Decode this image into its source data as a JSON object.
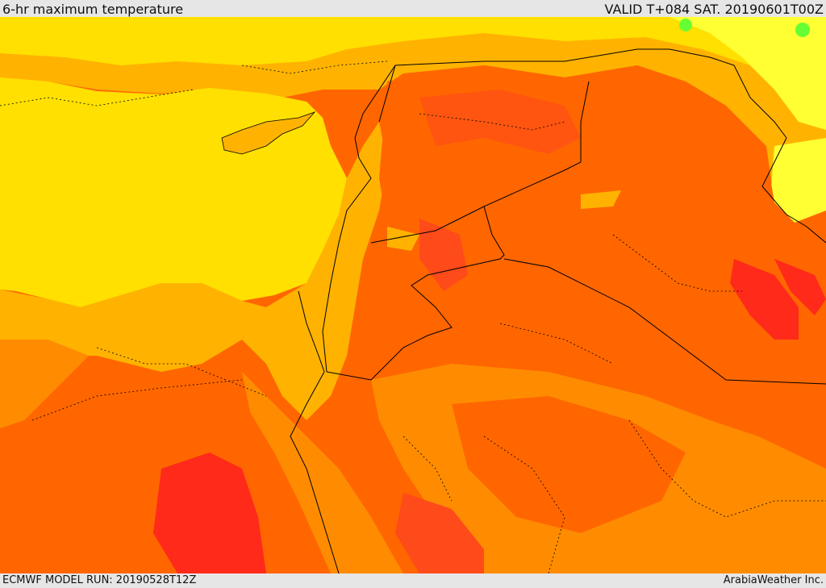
{
  "header": {
    "title": "6-hr maximum temperature",
    "valid": "VALID T+084 SAT. 20190601T00Z"
  },
  "footer": {
    "model_run": "ECMWF MODEL RUN: 20190528T12Z",
    "credit": "ArabiaWeather Inc."
  },
  "colors": {
    "sea_yellow": "#ffe000",
    "light_yellow": "#ffff33",
    "pale_orange": "#ffb300",
    "orange": "#ff8c00",
    "deep_orange": "#ff6600",
    "red_orange": "#ff4a1a",
    "red": "#ff2a1a",
    "green": "#66ff33",
    "border": "#000000"
  }
}
